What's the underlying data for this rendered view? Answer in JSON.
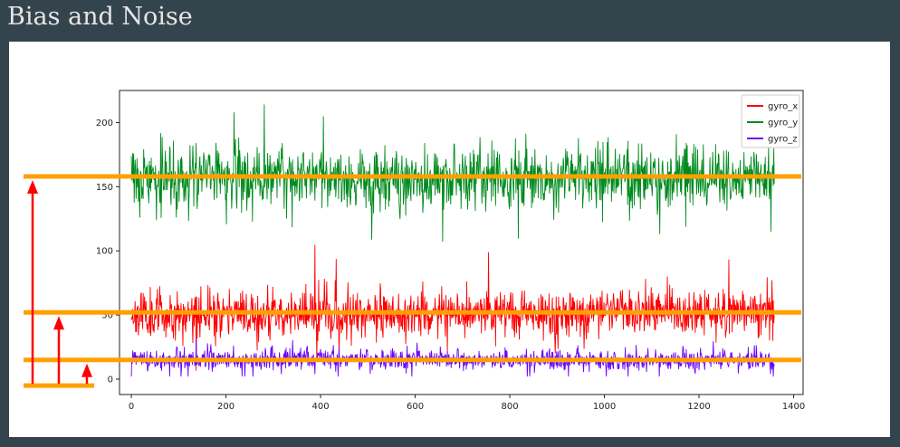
{
  "slide": {
    "title": "Bias and Noise"
  },
  "colors": {
    "background": "#34444d",
    "panel": "#ffffff",
    "gyro_x": "#ff0000",
    "gyro_y": "#008b1e",
    "gyro_z": "#6a00ff",
    "bias_line": "#ffa000",
    "arrow": "#ff0000"
  },
  "chart_data": {
    "type": "line",
    "title": "",
    "xlabel": "",
    "ylabel": "",
    "xlim": [
      -25,
      1420
    ],
    "ylim": [
      -12,
      225
    ],
    "xticks": [
      0,
      200,
      400,
      600,
      800,
      1000,
      1200,
      1400
    ],
    "yticks": [
      0,
      50,
      100,
      150,
      200
    ],
    "n_samples": 1360,
    "legend_position": "top-right",
    "series": [
      {
        "name": "gyro_x",
        "color": "#ff0000",
        "mean": 51,
        "noise_std": 9,
        "min": 2,
        "max": 118
      },
      {
        "name": "gyro_y",
        "color": "#008b1e",
        "mean": 157,
        "noise_std": 12,
        "min": 95,
        "max": 215
      },
      {
        "name": "gyro_z",
        "color": "#6a00ff",
        "mean": 15,
        "noise_std": 4,
        "min": 2,
        "max": 33
      }
    ],
    "annotations": {
      "bias_lines": [
        {
          "series": "gyro_y",
          "y": 158
        },
        {
          "series": "gyro_x",
          "y": 52
        },
        {
          "series": "gyro_z",
          "y": 15
        }
      ],
      "baseline_y": -5
    }
  }
}
